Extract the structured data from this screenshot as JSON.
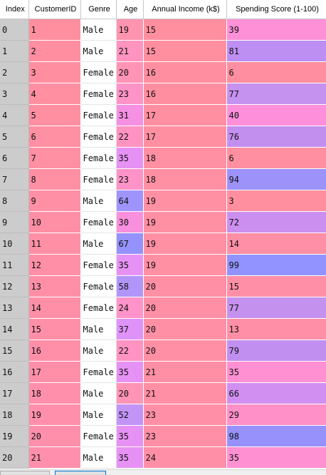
{
  "table": {
    "columns": [
      "Index",
      "CustomerID",
      "Genre",
      "Age",
      "Annual Income (k$)",
      "Spending Score (1-100)"
    ],
    "rows": [
      [
        "0",
        "1",
        "Male",
        "19",
        "15",
        "39"
      ],
      [
        "1",
        "2",
        "Male",
        "21",
        "15",
        "81"
      ],
      [
        "2",
        "3",
        "Female",
        "20",
        "16",
        "6"
      ],
      [
        "3",
        "4",
        "Female",
        "23",
        "16",
        "77"
      ],
      [
        "4",
        "5",
        "Female",
        "31",
        "17",
        "40"
      ],
      [
        "5",
        "6",
        "Female",
        "22",
        "17",
        "76"
      ],
      [
        "6",
        "7",
        "Female",
        "35",
        "18",
        "6"
      ],
      [
        "7",
        "8",
        "Female",
        "23",
        "18",
        "94"
      ],
      [
        "8",
        "9",
        "Male",
        "64",
        "19",
        "3"
      ],
      [
        "9",
        "10",
        "Female",
        "30",
        "19",
        "72"
      ],
      [
        "10",
        "11",
        "Male",
        "67",
        "19",
        "14"
      ],
      [
        "11",
        "12",
        "Female",
        "35",
        "19",
        "99"
      ],
      [
        "12",
        "13",
        "Female",
        "58",
        "20",
        "15"
      ],
      [
        "13",
        "14",
        "Female",
        "24",
        "20",
        "77"
      ],
      [
        "14",
        "15",
        "Male",
        "37",
        "20",
        "13"
      ],
      [
        "15",
        "16",
        "Male",
        "22",
        "20",
        "79"
      ],
      [
        "16",
        "17",
        "Female",
        "35",
        "21",
        "35"
      ],
      [
        "17",
        "18",
        "Male",
        "20",
        "21",
        "66"
      ],
      [
        "18",
        "19",
        "Male",
        "52",
        "23",
        "29"
      ],
      [
        "19",
        "20",
        "Female",
        "35",
        "23",
        "98"
      ],
      [
        "20",
        "21",
        "Male",
        "35",
        "24",
        "35"
      ]
    ],
    "cell_colors": [
      [
        "#cccccc",
        "#ff8f9f",
        "#ffffff",
        "#ff94b0",
        "#ff8f9f",
        "#fe90d8"
      ],
      [
        "#cccccc",
        "#ff8fa0",
        "#ffffff",
        "#fe94bf",
        "#ff8f9f",
        "#bd8ff2"
      ],
      [
        "#cccccc",
        "#ff8fa0",
        "#ffffff",
        "#ff94b6",
        "#ff8fa0",
        "#ff8fa0"
      ],
      [
        "#cccccc",
        "#ff8fa1",
        "#ffffff",
        "#fe93c7",
        "#ff8fa0",
        "#c592ef"
      ],
      [
        "#cccccc",
        "#ff8fa1",
        "#ffffff",
        "#f590e3",
        "#ff8fa1",
        "#fe8fda"
      ],
      [
        "#cccccc",
        "#ff8fa2",
        "#ffffff",
        "#fe93c2",
        "#ff8fa1",
        "#c38fef"
      ],
      [
        "#cccccc",
        "#ff8fa3",
        "#ffffff",
        "#e692f4",
        "#ff8fa2",
        "#ff8fa1"
      ],
      [
        "#cccccc",
        "#ff8fa3",
        "#ffffff",
        "#fe93c7",
        "#ff8fa2",
        "#9c92fa"
      ],
      [
        "#cccccc",
        "#ff8fa4",
        "#ffffff",
        "#9f94fb",
        "#ff8fa3",
        "#ff8f9f"
      ],
      [
        "#cccccc",
        "#ff8fa5",
        "#ffffff",
        "#f890dd",
        "#ff8fa3",
        "#cb8ff0"
      ],
      [
        "#cccccc",
        "#ff8fa5",
        "#ffffff",
        "#9592fd",
        "#ff8fa3",
        "#ff8fa6"
      ],
      [
        "#cccccc",
        "#ff8fa6",
        "#ffffff",
        "#e692f4",
        "#ff8fa3",
        "#9393ff"
      ],
      [
        "#cccccc",
        "#ff8fa7",
        "#ffffff",
        "#b195f9",
        "#ff8fa4",
        "#ff8fa7"
      ],
      [
        "#cccccc",
        "#ff8fa7",
        "#ffffff",
        "#ff93ca",
        "#ff8fa4",
        "#c591ef"
      ],
      [
        "#cccccc",
        "#ff8fa8",
        "#ffffff",
        "#df93f8",
        "#ff8fa4",
        "#ff8fa7"
      ],
      [
        "#cccccc",
        "#ff8fa9",
        "#ffffff",
        "#ff93c2",
        "#ff8fa4",
        "#c18fef"
      ],
      [
        "#cccccc",
        "#ff8fa9",
        "#ffffff",
        "#e692f4",
        "#ff8fa5",
        "#ff90d2"
      ],
      [
        "#cccccc",
        "#ff8faa",
        "#ffffff",
        "#ff94b6",
        "#ff8fa5",
        "#d190f1"
      ],
      [
        "#cccccc",
        "#ff8faa",
        "#ffffff",
        "#c294f6",
        "#ff8fa6",
        "#ff90c8"
      ],
      [
        "#cccccc",
        "#ff8fab",
        "#ffffff",
        "#e692f4",
        "#ff8fa6",
        "#9691fb"
      ],
      [
        "#cccccc",
        "#ff8fac",
        "#ffffff",
        "#e692f4",
        "#ff8fa7",
        "#ff90d2"
      ]
    ]
  }
}
